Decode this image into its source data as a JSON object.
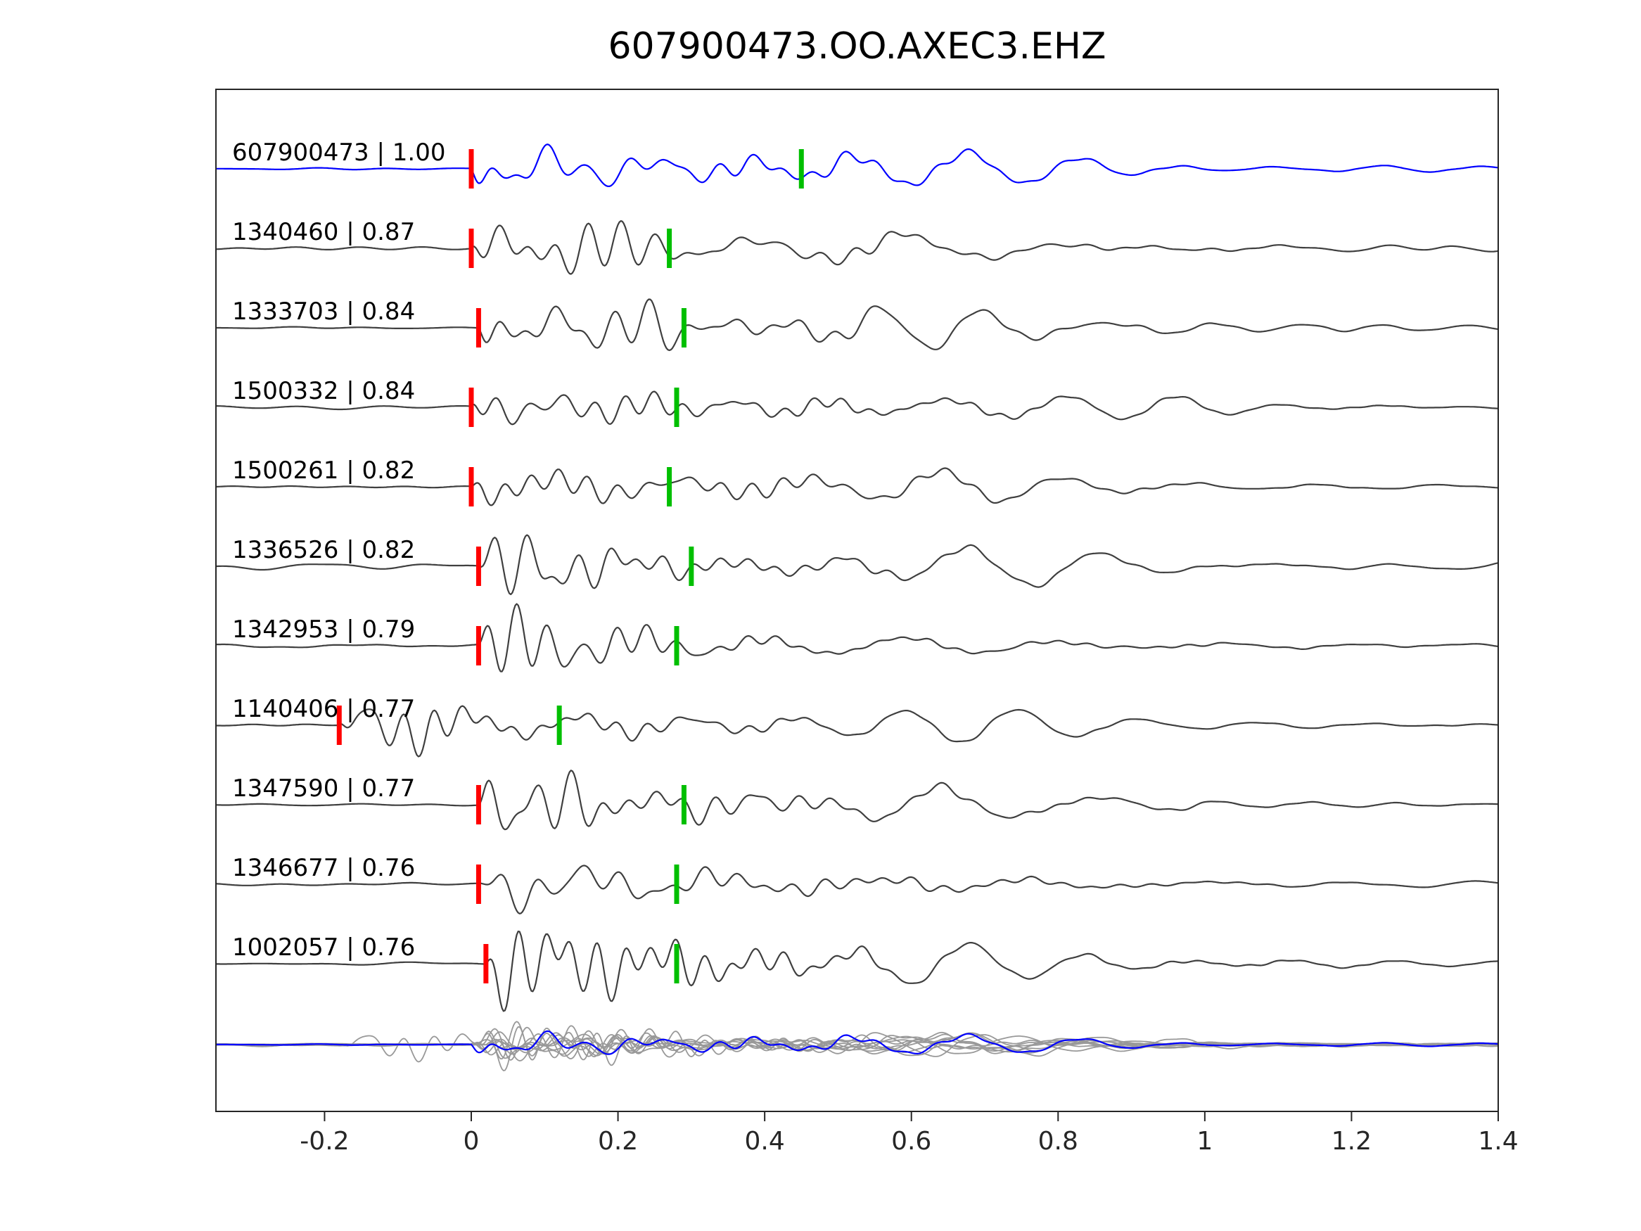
{
  "title": "607900473.OO.AXEC3.EHZ",
  "colors": {
    "reference_trace": "#0000ff",
    "member_trace": "#3f3f3f",
    "overlay_member": "#999999",
    "overlay_reference": "#0000ff",
    "red_pick": "#ff0000",
    "green_pick": "#00bf00",
    "axis": "#262626",
    "label_text": "#000000",
    "background": "#ffffff"
  },
  "x_axis": {
    "tick_labels": [
      "-0.2",
      "0",
      "0.2",
      "0.4",
      "0.6",
      "0.8",
      "1",
      "1.2",
      "1.4"
    ],
    "tick_values": [
      -0.2,
      0,
      0.2,
      0.4,
      0.6,
      0.8,
      1.0,
      1.2,
      1.4
    ]
  },
  "chart_data": {
    "type": "line",
    "title": "607900473.OO.AXEC3.EHZ",
    "xlabel": "",
    "ylabel": "",
    "xlim": [
      -0.35,
      1.4
    ],
    "grid": false,
    "legend": "none",
    "description": "Waveform cross-correlation panel: reference event trace (blue, top) and 10 matched member event traces (dark gray), each labeled 'event_id | correlation'. Red vertical bars mark the alignment pick near t=0 (t=-0.18 for event 1140406); green vertical bars mark a secondary pick. The bottom row overlays all member traces (light gray) with the reference trace (blue).",
    "traces": [
      {
        "row": 1,
        "id": "607900473",
        "correlation": 1.0,
        "label": "607900473 | 1.00",
        "color": "#0000ff",
        "red_pick": 0.0,
        "green_pick": 0.45,
        "onset": 0.0,
        "amp": 46,
        "noise": 1.5,
        "seed": 11
      },
      {
        "row": 2,
        "id": "1340460",
        "correlation": 0.87,
        "label": "1340460 | 0.87",
        "color": "#3f3f3f",
        "red_pick": 0.0,
        "green_pick": 0.27,
        "onset": 0.0,
        "amp": 46,
        "noise": 4,
        "seed": 22
      },
      {
        "row": 3,
        "id": "1333703",
        "correlation": 0.84,
        "label": "1333703 | 0.84",
        "color": "#3f3f3f",
        "red_pick": 0.01,
        "green_pick": 0.29,
        "onset": 0.01,
        "amp": 48,
        "noise": 2,
        "seed": 33
      },
      {
        "row": 4,
        "id": "1500332",
        "correlation": 0.84,
        "label": "1500332 | 0.84",
        "color": "#3f3f3f",
        "red_pick": 0.0,
        "green_pick": 0.28,
        "onset": 0.0,
        "amp": 44,
        "noise": 2,
        "seed": 44
      },
      {
        "row": 5,
        "id": "1500261",
        "correlation": 0.82,
        "label": "1500261 | 0.82",
        "color": "#3f3f3f",
        "red_pick": 0.0,
        "green_pick": 0.27,
        "onset": 0.0,
        "amp": 44,
        "noise": 2,
        "seed": 55
      },
      {
        "row": 6,
        "id": "1336526",
        "correlation": 0.82,
        "label": "1336526 | 0.82",
        "color": "#3f3f3f",
        "red_pick": 0.01,
        "green_pick": 0.3,
        "onset": 0.01,
        "amp": 42,
        "noise": 5,
        "seed": 66
      },
      {
        "row": 7,
        "id": "1342953",
        "correlation": 0.79,
        "label": "1342953 | 0.79",
        "color": "#3f3f3f",
        "red_pick": 0.01,
        "green_pick": 0.28,
        "onset": 0.01,
        "amp": 42,
        "noise": 2.5,
        "seed": 77
      },
      {
        "row": 8,
        "id": "1140406",
        "correlation": 0.77,
        "label": "1140406 | 0.77",
        "color": "#3f3f3f",
        "red_pick": -0.18,
        "green_pick": 0.12,
        "onset": -0.18,
        "amp": 46,
        "noise": 3,
        "seed": 88
      },
      {
        "row": 9,
        "id": "1347590",
        "correlation": 0.77,
        "label": "1347590 | 0.77",
        "color": "#3f3f3f",
        "red_pick": 0.01,
        "green_pick": 0.29,
        "onset": 0.01,
        "amp": 48,
        "noise": 3,
        "seed": 99
      },
      {
        "row": 10,
        "id": "1346677",
        "correlation": 0.76,
        "label": "1346677 | 0.76",
        "color": "#3f3f3f",
        "red_pick": 0.01,
        "green_pick": 0.28,
        "onset": 0.01,
        "amp": 48,
        "noise": 2,
        "seed": 101
      },
      {
        "row": 11,
        "id": "1002057",
        "correlation": 0.76,
        "label": "1002057 | 0.76",
        "color": "#3f3f3f",
        "red_pick": 0.02,
        "green_pick": 0.28,
        "onset": 0.02,
        "amp": 50,
        "noise": 2,
        "seed": 123
      }
    ],
    "overlay": {
      "scale": 0.55,
      "member_color": "#999999",
      "reference_color": "#0000ff"
    }
  }
}
